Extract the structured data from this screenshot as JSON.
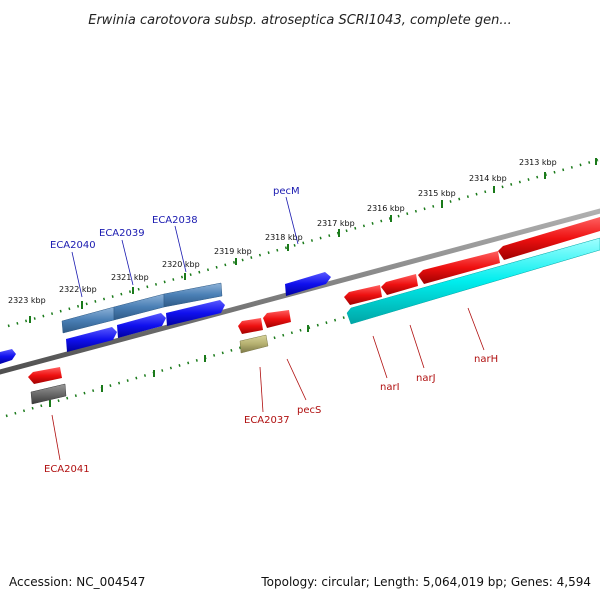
{
  "title": "Erwinia carotovora subsp. atroseptica SCRI1043, complete gen...",
  "footer": {
    "accession": "Accession: NC_004547",
    "summary": "Topology: circular; Length: 5,064,019 bp; Genes: 4,594"
  },
  "colors": {
    "forward_gene": "#1010ee",
    "reverse_gene": "#ee1010",
    "reverse_rna": "#00eeee",
    "steelblue_gene": "#4a7fb5",
    "olive_gene": "#b5b070",
    "gray_gene": "#6a6a6a",
    "backbone": "#808080",
    "tick": "#1a7a1a",
    "label_top": "#1a1ab0",
    "label_bottom": "#b01010"
  },
  "kbp_labels": [
    "2323 kbp",
    "2322 kbp",
    "2321 kbp",
    "2320 kbp",
    "2319 kbp",
    "2318 kbp",
    "2317 kbp",
    "2316 kbp",
    "2315 kbp",
    "2314 kbp",
    "2313 kbp"
  ],
  "gene_labels_top": [
    "ECA2040",
    "ECA2039",
    "ECA2038",
    "pecM"
  ],
  "gene_labels_bottom": [
    "ECA2041",
    "ECA2037",
    "pecS",
    "narI",
    "narJ",
    "narH"
  ]
}
